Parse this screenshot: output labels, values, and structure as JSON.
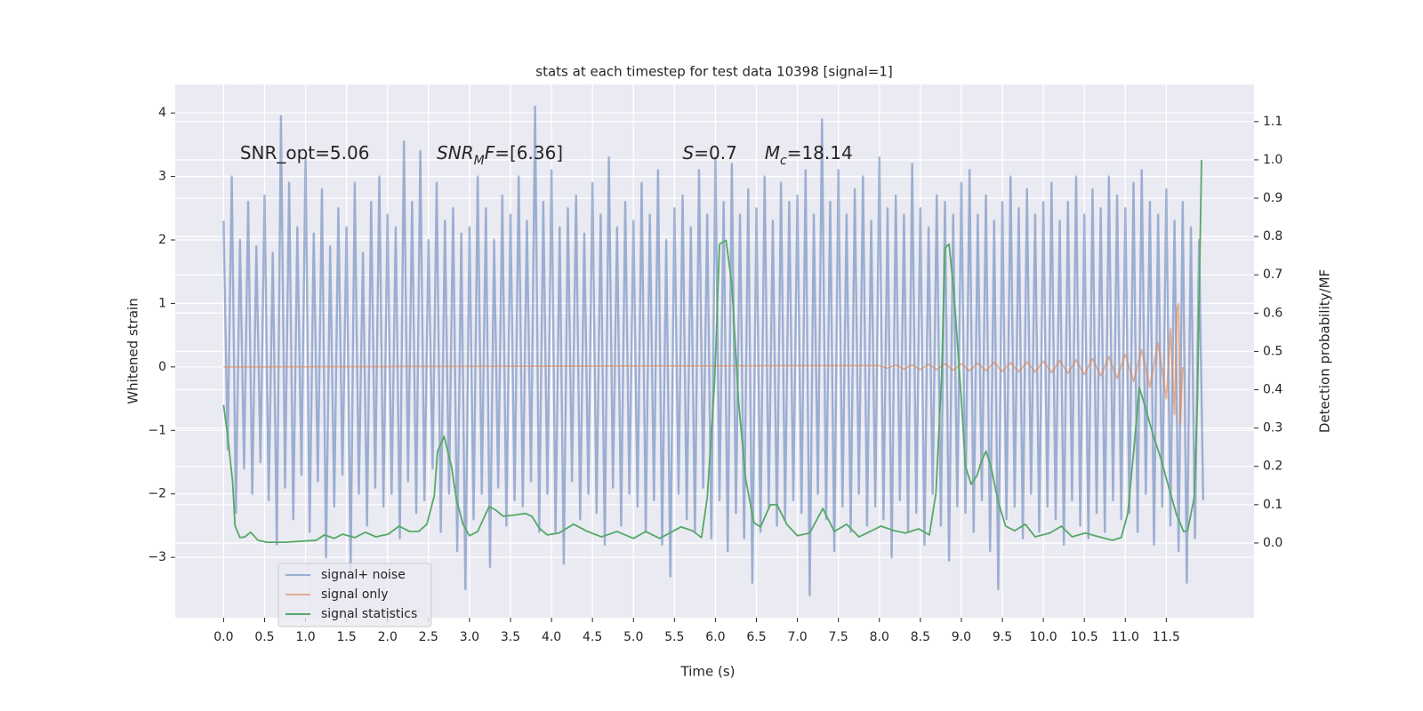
{
  "chart_data": {
    "type": "line",
    "title": "stats at each timestep for test data 10398 [signal=1]",
    "x_label": "Time (s)",
    "y_label": "Whitened strain",
    "y2_label": "Detection probability/MF",
    "xlim": [
      -0.59,
      12.57
    ],
    "ylim": [
      -3.95,
      4.45
    ],
    "y2lim": [
      -0.195,
      1.197
    ],
    "grid": true,
    "legend": "lower left",
    "background": "#eaeaf2",
    "xticks": [
      {
        "value": 0,
        "label": "0.0"
      },
      0.5,
      {
        "value": 1,
        "label": "1.0"
      },
      1.5,
      {
        "value": 2,
        "label": "2.0"
      },
      2.5,
      {
        "value": 3,
        "label": "3.0"
      },
      3.5,
      {
        "value": 4,
        "label": "4.0"
      },
      4.5,
      {
        "value": 5,
        "label": "5.0"
      },
      5.5,
      {
        "value": 6,
        "label": "6.0"
      },
      6.5,
      {
        "value": 7,
        "label": "7.0"
      },
      7.5,
      {
        "value": 8,
        "label": "8.0"
      },
      8.5,
      {
        "value": 9,
        "label": "9.0"
      },
      9.5,
      {
        "value": 10,
        "label": "10.0"
      },
      10.5,
      {
        "value": 11,
        "label": "11.0"
      },
      11.5
    ],
    "yticks": [
      {
        "value": -3,
        "label": "−3"
      },
      {
        "value": -2,
        "label": "−2"
      },
      {
        "value": -1,
        "label": "−1"
      },
      0,
      1,
      2,
      3,
      4
    ],
    "y2ticks": [
      {
        "value": 0,
        "label": "0.0"
      },
      0.1,
      0.2,
      0.3,
      0.4,
      0.5,
      0.6,
      0.7,
      0.8,
      0.9,
      {
        "value": 1,
        "label": "1.0"
      },
      1.1
    ],
    "annotations": [
      [
        {
          "text": "SNR_opt=5.06"
        }
      ],
      [
        {
          "text": "SNR",
          "style": "italic"
        },
        {
          "text": "M",
          "style": "italic-sub"
        },
        {
          "text": "F",
          "style": "italic"
        },
        {
          "text": "=[6.36]"
        }
      ],
      [
        {
          "text": "S",
          "style": "italic"
        },
        {
          "text": "=0.7"
        }
      ],
      [
        {
          "text": "M",
          "style": "italic"
        },
        {
          "text": "c",
          "style": "italic-sub"
        },
        {
          "text": "=18.14"
        }
      ]
    ],
    "series": [
      {
        "name": "signal+ noise",
        "color": "#4c72b0",
        "opacity": 0.5,
        "x": [
          0,
          0.05,
          0.1,
          0.15,
          0.2,
          0.25,
          0.3,
          0.35,
          0.4,
          0.45,
          0.5,
          0.55,
          0.6,
          0.65,
          0.7,
          0.75,
          0.8,
          0.85,
          0.9,
          0.95,
          1,
          1.05,
          1.1,
          1.15,
          1.2,
          1.25,
          1.3,
          1.35,
          1.4,
          1.45,
          1.5,
          1.55,
          1.6,
          1.65,
          1.7,
          1.75,
          1.8,
          1.85,
          1.9,
          1.95,
          2,
          2.05,
          2.1,
          2.15,
          2.2,
          2.25,
          2.3,
          2.35,
          2.4,
          2.45,
          2.5,
          2.55,
          2.6,
          2.65,
          2.7,
          2.75,
          2.8,
          2.85,
          2.9,
          2.95,
          3,
          3.05,
          3.1,
          3.15,
          3.2,
          3.25,
          3.3,
          3.35,
          3.4,
          3.45,
          3.5,
          3.55,
          3.6,
          3.65,
          3.7,
          3.75,
          3.8,
          3.85,
          3.9,
          3.95,
          4,
          4.05,
          4.1,
          4.15,
          4.2,
          4.25,
          4.3,
          4.35,
          4.4,
          4.45,
          4.5,
          4.55,
          4.6,
          4.65,
          4.7,
          4.75,
          4.8,
          4.85,
          4.9,
          4.95,
          5,
          5.05,
          5.1,
          5.15,
          5.2,
          5.25,
          5.3,
          5.35,
          5.4,
          5.45,
          5.5,
          5.55,
          5.6,
          5.65,
          5.7,
          5.75,
          5.8,
          5.85,
          5.9,
          5.95,
          6,
          6.05,
          6.1,
          6.15,
          6.2,
          6.25,
          6.3,
          6.35,
          6.4,
          6.45,
          6.5,
          6.55,
          6.6,
          6.65,
          6.7,
          6.75,
          6.8,
          6.85,
          6.9,
          6.95,
          7,
          7.05,
          7.1,
          7.15,
          7.2,
          7.25,
          7.3,
          7.35,
          7.4,
          7.45,
          7.5,
          7.55,
          7.6,
          7.65,
          7.7,
          7.75,
          7.8,
          7.85,
          7.9,
          7.95,
          8,
          8.05,
          8.1,
          8.15,
          8.2,
          8.25,
          8.3,
          8.35,
          8.4,
          8.45,
          8.5,
          8.55,
          8.6,
          8.65,
          8.7,
          8.75,
          8.8,
          8.85,
          8.9,
          8.95,
          9,
          9.05,
          9.1,
          9.15,
          9.2,
          9.25,
          9.3,
          9.35,
          9.4,
          9.45,
          9.5,
          9.55,
          9.6,
          9.65,
          9.7,
          9.75,
          9.8,
          9.85,
          9.9,
          9.95,
          10,
          10.05,
          10.1,
          10.15,
          10.2,
          10.25,
          10.3,
          10.35,
          10.4,
          10.45,
          10.5,
          10.55,
          10.6,
          10.65,
          10.7,
          10.75,
          10.8,
          10.85,
          10.9,
          10.95,
          11,
          11.05,
          11.1,
          11.15,
          11.2,
          11.25,
          11.3,
          11.35,
          11.4,
          11.45,
          11.5,
          11.55,
          11.6,
          11.65,
          11.7,
          11.75,
          11.8,
          11.85,
          11.9,
          11.95
        ],
        "values": [
          2.3,
          -1.3,
          3.0,
          -2.3,
          2.0,
          -1.6,
          2.6,
          -2.0,
          1.9,
          -1.5,
          2.7,
          -2.1,
          1.8,
          -2.8,
          3.95,
          -1.9,
          2.9,
          -2.4,
          2.2,
          -1.7,
          3.3,
          -2.6,
          2.1,
          -1.8,
          2.8,
          -3.0,
          1.9,
          -2.2,
          2.5,
          -1.7,
          2.2,
          -3.2,
          2.9,
          -2.0,
          1.8,
          -2.5,
          2.6,
          -1.9,
          3.0,
          -2.2,
          2.4,
          -2.0,
          2.2,
          -2.7,
          3.55,
          -1.8,
          2.6,
          -2.3,
          3.4,
          -2.1,
          2.0,
          -1.6,
          2.9,
          -2.6,
          2.3,
          -2.0,
          2.5,
          -2.9,
          2.1,
          -3.5,
          2.2,
          -2.4,
          3.0,
          -2.0,
          2.5,
          -3.15,
          2.0,
          -1.9,
          2.7,
          -2.5,
          2.4,
          -2.1,
          3.0,
          -2.2,
          2.3,
          -1.8,
          4.1,
          -2.6,
          2.6,
          -2.0,
          3.1,
          -2.6,
          2.2,
          -3.1,
          2.5,
          -1.8,
          2.7,
          -2.4,
          2.1,
          -2.0,
          2.9,
          -2.3,
          2.4,
          -2.8,
          3.3,
          -1.9,
          2.2,
          -2.5,
          2.6,
          -2.0,
          2.3,
          -2.2,
          2.9,
          -2.6,
          2.4,
          -2.1,
          3.1,
          -2.8,
          2.0,
          -3.3,
          2.5,
          -2.0,
          2.7,
          -2.4,
          2.2,
          -2.6,
          3.1,
          -1.9,
          2.4,
          -2.7,
          3.3,
          -2.1,
          2.6,
          -2.9,
          3.2,
          -2.3,
          2.4,
          -2.7,
          2.8,
          -3.4,
          2.5,
          -2.6,
          3.0,
          -2.2,
          2.3,
          -2.5,
          2.9,
          -2.4,
          2.6,
          -2.1,
          2.7,
          -2.3,
          3.1,
          -3.6,
          2.4,
          -2.0,
          3.9,
          -2.4,
          2.6,
          -2.9,
          3.1,
          -2.2,
          2.4,
          -2.6,
          2.8,
          -2.0,
          3.0,
          -2.5,
          2.3,
          -2.2,
          3.3,
          -2.4,
          2.5,
          -3.0,
          2.7,
          -2.1,
          2.4,
          -2.6,
          3.2,
          -2.3,
          2.5,
          -2.8,
          2.2,
          -2.0,
          2.7,
          -2.5,
          2.6,
          -3.05,
          2.4,
          -2.2,
          2.9,
          -2.3,
          3.1,
          -2.6,
          2.4,
          -2.1,
          2.7,
          -2.9,
          2.3,
          -3.5,
          2.6,
          -2.4,
          3.0,
          -2.2,
          2.5,
          -2.7,
          2.8,
          -2.0,
          2.4,
          -2.6,
          2.6,
          -2.2,
          2.9,
          -2.4,
          2.3,
          -2.8,
          2.6,
          -2.1,
          3.0,
          -2.5,
          2.4,
          -2.7,
          2.8,
          -2.3,
          2.5,
          -2.6,
          3.0,
          -2.1,
          2.7,
          -2.4,
          2.5,
          -2.3,
          2.9,
          -2.6,
          3.1,
          -2.0,
          2.6,
          -2.8,
          2.4,
          -2.2,
          2.8,
          -2.5,
          2.3,
          -2.9,
          2.6,
          -3.4,
          2.2,
          -2.7,
          2.0,
          -2.1
        ]
      },
      {
        "name": "signal only",
        "color": "#dd8452",
        "opacity": 0.6,
        "x": [
          0,
          8,
          8.1,
          8.2,
          8.3,
          8.4,
          8.5,
          8.6,
          8.7,
          8.8,
          8.9,
          9,
          9.1,
          9.2,
          9.3,
          9.4,
          9.5,
          9.6,
          9.7,
          9.8,
          9.9,
          10,
          10.1,
          10.2,
          10.3,
          10.4,
          10.5,
          10.6,
          10.7,
          10.8,
          10.9,
          11,
          11.1,
          11.2,
          11.3,
          11.4,
          11.5,
          11.55,
          11.6,
          11.63,
          11.65,
          11.67,
          11.7
        ],
        "values": [
          0,
          0.02,
          -0.02,
          0.03,
          -0.03,
          0.03,
          -0.04,
          0.04,
          -0.04,
          0.05,
          -0.05,
          0.05,
          -0.06,
          0.06,
          -0.06,
          0.07,
          -0.07,
          0.07,
          -0.08,
          0.08,
          -0.08,
          0.09,
          -0.09,
          0.1,
          -0.1,
          0.11,
          -0.12,
          0.13,
          -0.14,
          0.16,
          -0.18,
          0.2,
          -0.23,
          0.27,
          -0.32,
          0.38,
          -0.5,
          0.6,
          -0.75,
          0.9,
          1.0,
          -0.9,
          0
        ]
      },
      {
        "name": "signal statistics",
        "color": "#55a868",
        "opacity": 1,
        "axis": "y2",
        "x": [
          0,
          0.05,
          0.11,
          0.14,
          0.2,
          0.26,
          0.33,
          0.42,
          0.53,
          0.75,
          0.97,
          1.13,
          1.23,
          1.35,
          1.45,
          1.6,
          1.73,
          1.86,
          2.01,
          2.14,
          2.27,
          2.38,
          2.48,
          2.57,
          2.61,
          2.69,
          2.78,
          2.84,
          2.92,
          3.0,
          3.1,
          3.17,
          3.24,
          3.32,
          3.41,
          3.52,
          3.68,
          3.76,
          3.85,
          3.95,
          4.09,
          4.27,
          4.44,
          4.61,
          4.8,
          5.0,
          5.15,
          5.32,
          5.58,
          5.72,
          5.83,
          5.9,
          5.99,
          6.05,
          6.13,
          6.2,
          6.28,
          6.37,
          6.47,
          6.55,
          6.67,
          6.75,
          6.87,
          7.0,
          7.15,
          7.31,
          7.45,
          7.6,
          7.75,
          7.85,
          8.02,
          8.18,
          8.32,
          8.48,
          8.61,
          8.69,
          8.76,
          8.8,
          8.85,
          8.91,
          9.0,
          9.05,
          9.12,
          9.19,
          9.24,
          9.3,
          9.36,
          9.45,
          9.54,
          9.65,
          9.78,
          9.9,
          10.08,
          10.22,
          10.35,
          10.51,
          10.68,
          10.84,
          10.95,
          11.03,
          11.1,
          11.17,
          11.25,
          11.33,
          11.44,
          11.52,
          11.62,
          11.71,
          11.76,
          11.84,
          11.88,
          11.93
        ],
        "values": [
          0.36,
          0.28,
          0.16,
          0.045,
          0.014,
          0.016,
          0.028,
          0.007,
          0.002,
          0.002,
          0.005,
          0.007,
          0.021,
          0.012,
          0.023,
          0.014,
          0.028,
          0.016,
          0.023,
          0.044,
          0.03,
          0.03,
          0.049,
          0.123,
          0.239,
          0.278,
          0.2,
          0.114,
          0.049,
          0.019,
          0.03,
          0.063,
          0.095,
          0.086,
          0.07,
          0.072,
          0.077,
          0.07,
          0.039,
          0.021,
          0.026,
          0.049,
          0.03,
          0.016,
          0.03,
          0.012,
          0.03,
          0.012,
          0.042,
          0.032,
          0.014,
          0.118,
          0.42,
          0.78,
          0.79,
          0.675,
          0.374,
          0.165,
          0.053,
          0.042,
          0.1,
          0.1,
          0.049,
          0.019,
          0.026,
          0.09,
          0.03,
          0.049,
          0.016,
          0.026,
          0.044,
          0.032,
          0.026,
          0.037,
          0.021,
          0.13,
          0.44,
          0.77,
          0.78,
          0.65,
          0.374,
          0.2,
          0.153,
          0.176,
          0.21,
          0.24,
          0.2,
          0.107,
          0.044,
          0.032,
          0.049,
          0.016,
          0.026,
          0.044,
          0.016,
          0.026,
          0.016,
          0.007,
          0.014,
          0.077,
          0.234,
          0.406,
          0.35,
          0.288,
          0.216,
          0.153,
          0.077,
          0.03,
          0.032,
          0.118,
          0.374,
          1.0
        ]
      }
    ]
  }
}
